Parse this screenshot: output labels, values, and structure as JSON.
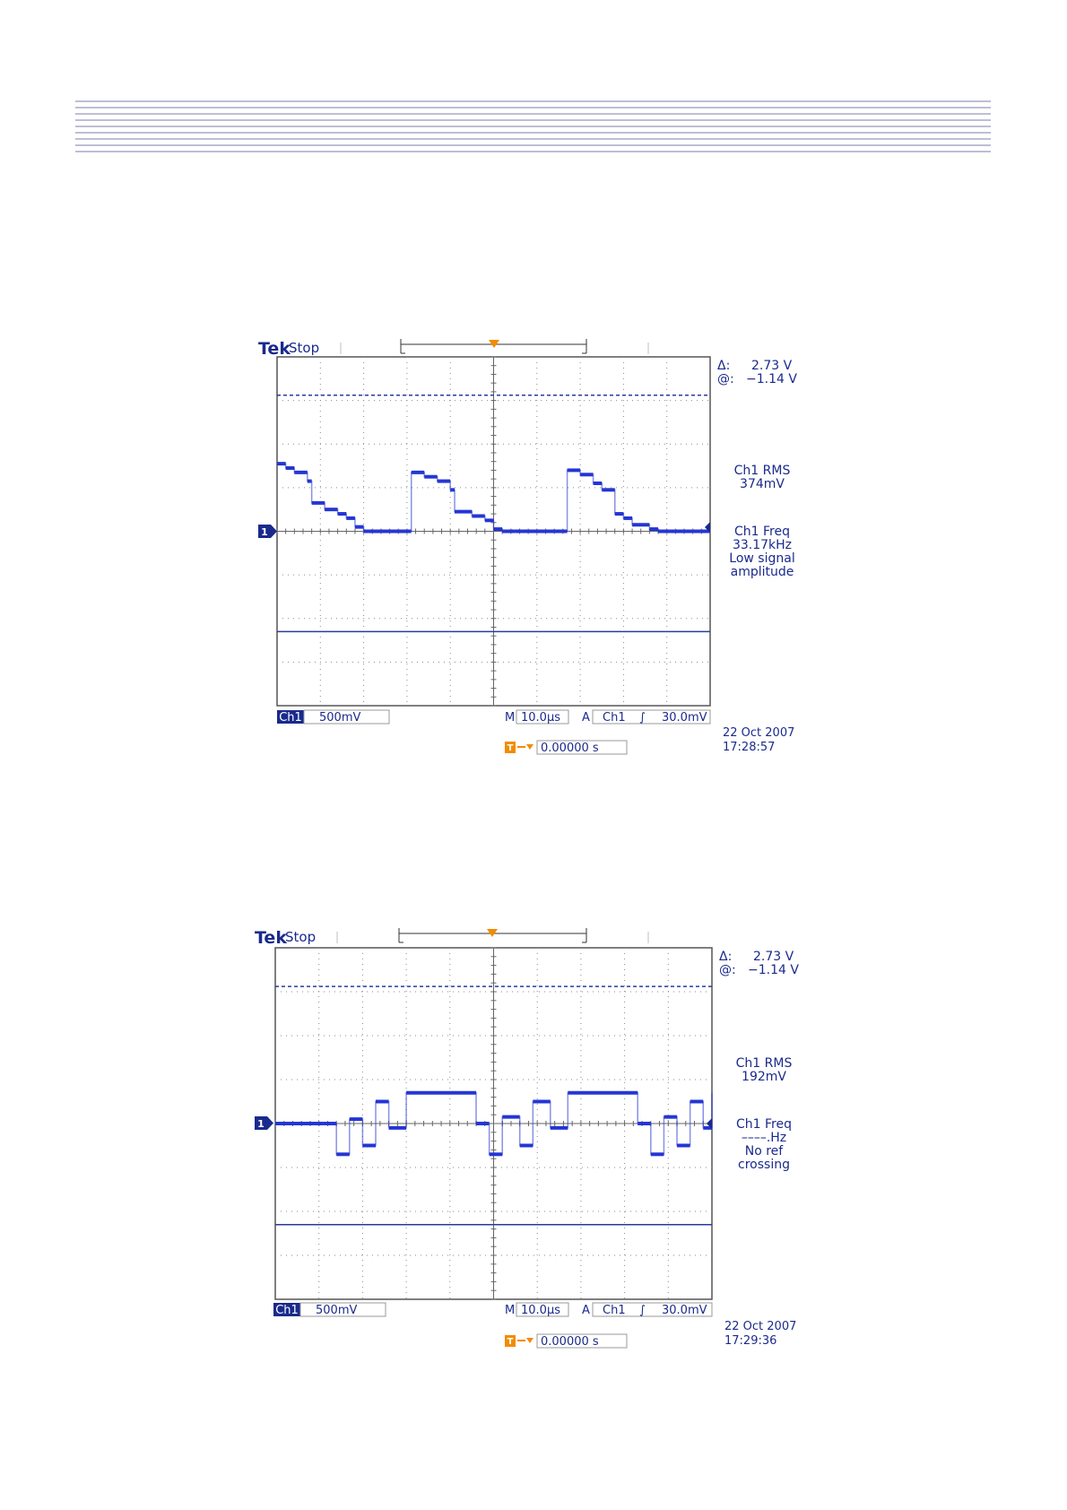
{
  "chart_data": [
    {
      "type": "line",
      "brand": "Tek",
      "acq_state": "Stop",
      "trigger_marker": "T",
      "channel_marker": "1",
      "readouts": {
        "delta_symbol": "Δ:",
        "delta_value": "2.73 V",
        "at_symbol": "@:",
        "at_value": "−1.14 V",
        "meas1_label": "Ch1 RMS",
        "meas1_value": "374mV",
        "meas2_label": "Ch1 Freq",
        "meas2_value": "33.17kHz",
        "meas2_note1": "Low signal",
        "meas2_note2": "amplitude"
      },
      "settings": {
        "ch_label": "Ch1",
        "volts_div": "500mV",
        "m_label": "M",
        "time_div": "10.0µs",
        "a_label": "A",
        "trig_source": "Ch1",
        "trig_slope": "∫",
        "trig_level": "30.0mV",
        "trig_pos_value": "0.00000 s",
        "date": "22 Oct  2007",
        "time": "17:28:57"
      },
      "cursor_levels_div": [
        3.12,
        -2.3
      ],
      "xlim_div": [
        -5,
        5
      ],
      "ylim_div": [
        -4,
        4
      ],
      "colors": {
        "trace": "#2436d4",
        "grid": "#8a8a8a",
        "text": "#1a2a8c",
        "trigger": "#f28c00"
      },
      "series": [
        {
          "x": [
            -5.0,
            -4.8,
            -4.6,
            -4.3,
            -4.2,
            -3.9,
            -3.6,
            -3.4,
            -3.2,
            -3.0,
            -2.9,
            -2.6,
            -2.4,
            -2.2,
            -1.9,
            -1.6,
            -1.3,
            -1.0,
            -0.9,
            -0.5,
            -0.2,
            0.0,
            0.2,
            0.5,
            1.0,
            1.6,
            1.7,
            2.0,
            2.3,
            2.5,
            2.8,
            3.0,
            3.2,
            3.6,
            3.8,
            4.1,
            4.4,
            4.8,
            5.0
          ],
          "y": [
            1.55,
            1.45,
            1.35,
            1.15,
            0.65,
            0.5,
            0.4,
            0.3,
            0.1,
            0.0,
            0.0,
            0.0,
            0.0,
            0.0,
            1.35,
            1.25,
            1.15,
            0.95,
            0.45,
            0.35,
            0.25,
            0.05,
            0.0,
            0.0,
            0.0,
            0.0,
            1.4,
            1.3,
            1.1,
            0.95,
            0.4,
            0.3,
            0.15,
            0.05,
            0.0,
            0.0,
            0.0,
            0.0,
            0.0
          ]
        }
      ]
    },
    {
      "type": "line",
      "brand": "Tek",
      "acq_state": "Stop",
      "trigger_marker": "T",
      "channel_marker": "1",
      "readouts": {
        "delta_symbol": "Δ:",
        "delta_value": "2.73 V",
        "at_symbol": "@:",
        "at_value": "−1.14 V",
        "meas1_label": "Ch1 RMS",
        "meas1_value": "192mV",
        "meas2_label": "Ch1 Freq",
        "meas2_value": "––––.Hz",
        "meas2_note1": "No ref",
        "meas2_note2": "crossing"
      },
      "settings": {
        "ch_label": "Ch1",
        "volts_div": "500mV",
        "m_label": "M",
        "time_div": "10.0µs",
        "a_label": "A",
        "trig_source": "Ch1",
        "trig_slope": "∫",
        "trig_level": "30.0mV",
        "trig_pos_value": "0.00000 s",
        "date": "22 Oct  2007",
        "time": "17:29:36"
      },
      "cursor_levels_div": [
        3.12,
        -2.3
      ],
      "xlim_div": [
        -5,
        5
      ],
      "ylim_div": [
        -4,
        4
      ],
      "colors": {
        "trace": "#2436d4",
        "grid": "#8a8a8a",
        "text": "#1a2a8c",
        "trigger": "#f28c00"
      },
      "series": [
        {
          "x": [
            -5.0,
            -3.9,
            -3.6,
            -3.3,
            -3.0,
            -2.7,
            -2.4,
            -2.0,
            -0.4,
            -0.1,
            0.2,
            0.6,
            0.9,
            1.3,
            1.7,
            3.3,
            3.6,
            3.9,
            4.2,
            4.5,
            4.8,
            5.0
          ],
          "y": [
            0.0,
            0.0,
            -0.7,
            0.1,
            -0.5,
            0.5,
            -0.1,
            0.7,
            0.0,
            -0.7,
            0.15,
            -0.5,
            0.5,
            -0.1,
            0.7,
            0.0,
            -0.7,
            0.15,
            -0.5,
            0.5,
            -0.1,
            0.7
          ]
        }
      ]
    }
  ]
}
